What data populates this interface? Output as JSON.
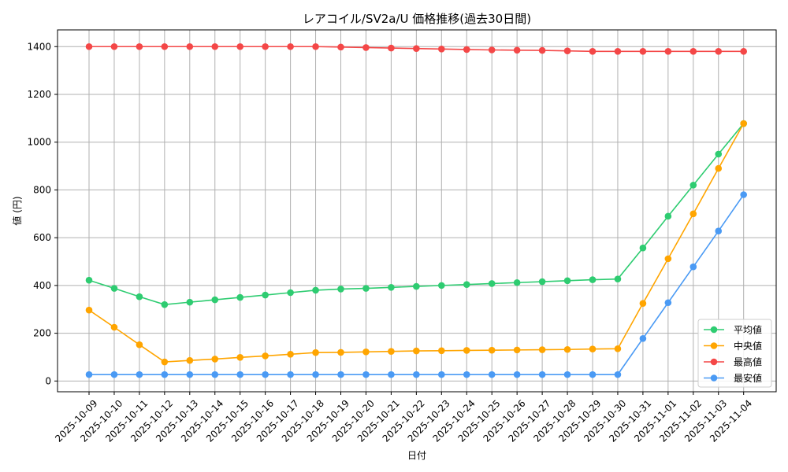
{
  "chart_data": {
    "type": "line",
    "title": "レアコイル/SV2a/U 価格推移(過去30日間)",
    "xlabel": "日付",
    "ylabel": "値 (円)",
    "ylim": [
      -45,
      1470
    ],
    "yticks": [
      0,
      200,
      400,
      600,
      800,
      1000,
      1200,
      1400
    ],
    "grid": true,
    "legend_position": "lower-right",
    "categories": [
      "2025-10-09",
      "2025-10-10",
      "2025-10-11",
      "2025-10-12",
      "2025-10-13",
      "2025-10-14",
      "2025-10-15",
      "2025-10-16",
      "2025-10-17",
      "2025-10-18",
      "2025-10-19",
      "2025-10-20",
      "2025-10-21",
      "2025-10-22",
      "2025-10-23",
      "2025-10-24",
      "2025-10-25",
      "2025-10-26",
      "2025-10-27",
      "2025-10-28",
      "2025-10-29",
      "2025-10-30",
      "2025-10-31",
      "2025-11-01",
      "2025-11-02",
      "2025-11-03",
      "2025-11-04"
    ],
    "series": [
      {
        "name": "平均値",
        "color": "#2ecc71",
        "values": [
          422,
          388,
          353,
          320,
          330,
          340,
          350,
          360,
          370,
          380,
          385,
          388,
          392,
          396,
          400,
          404,
          408,
          412,
          416,
          420,
          424,
          427,
          557,
          690,
          820,
          950,
          1078
        ]
      },
      {
        "name": "中央値",
        "color": "#ffa500",
        "values": [
          297,
          225,
          152,
          80,
          86,
          92,
          99,
          105,
          112,
          119,
          120,
          122,
          124,
          126,
          127,
          128,
          129,
          130,
          131,
          132,
          134,
          135,
          325,
          512,
          700,
          890,
          1078
        ]
      },
      {
        "name": "最高値",
        "color": "#f44747",
        "values": [
          1400,
          1400,
          1400,
          1400,
          1400,
          1400,
          1400,
          1400,
          1400,
          1400,
          1398,
          1396,
          1394,
          1392,
          1390,
          1388,
          1386,
          1385,
          1384,
          1382,
          1380,
          1380,
          1380,
          1380,
          1380,
          1380,
          1380
        ]
      },
      {
        "name": "最安値",
        "color": "#4a9af4",
        "values": [
          27,
          27,
          27,
          27,
          27,
          27,
          27,
          27,
          27,
          27,
          27,
          27,
          27,
          27,
          27,
          27,
          27,
          27,
          27,
          27,
          27,
          27,
          178,
          328,
          478,
          628,
          780
        ]
      }
    ]
  }
}
